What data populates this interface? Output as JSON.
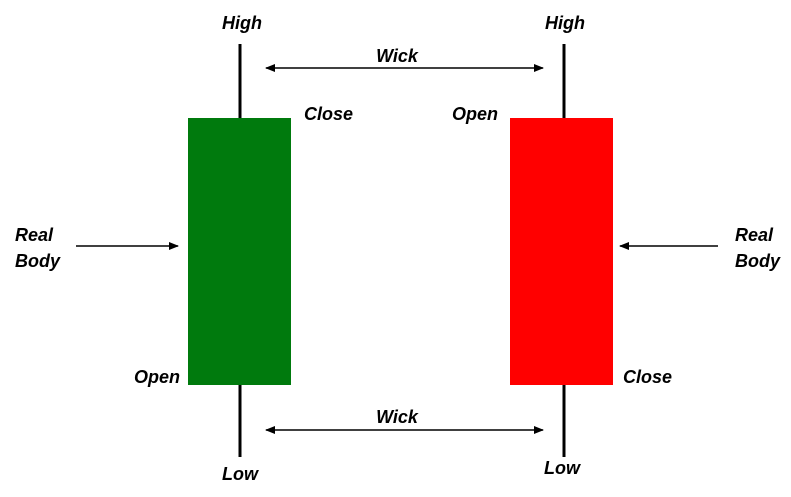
{
  "colors": {
    "bullish": "#007a0d",
    "bearish": "#ff0000",
    "line": "#000000",
    "text": "#000000"
  },
  "labels": {
    "high_left": "High",
    "high_right": "High",
    "low_left": "Low",
    "low_right": "Low",
    "close_left": "Close",
    "open_left": "Open",
    "open_right": "Open",
    "close_right": "Close",
    "wick_top": "Wick",
    "wick_bottom": "Wick",
    "real_left_1": "Real",
    "real_left_2": "Body",
    "real_right_1": "Real",
    "real_right_2": "Body"
  }
}
